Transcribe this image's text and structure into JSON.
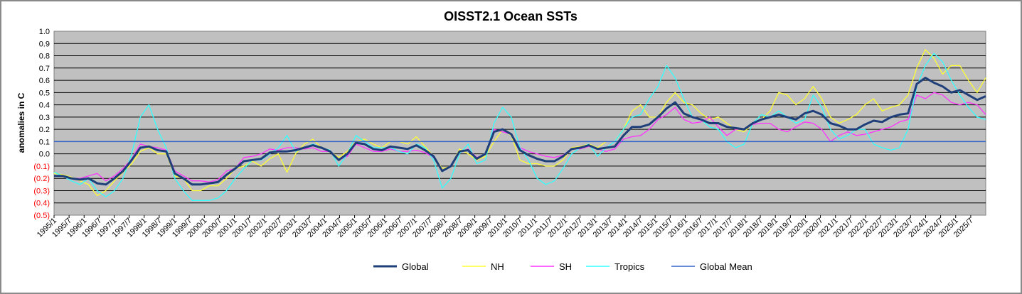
{
  "chart_data": {
    "type": "line",
    "title": "OISST2.1 Ocean SSTs",
    "ylabel": "anomalies in C",
    "xlabel": "",
    "ylim": [
      -0.5,
      1.0
    ],
    "y_ticks": [
      "1.0",
      "0.9",
      "0.8",
      "0.7",
      "0.6",
      "0.5",
      "0.4",
      "0.3",
      "0.2",
      "0.1",
      "0.0",
      "(0.1)",
      "(0.2)",
      "(0.3)",
      "(0.4)",
      "(0.5)"
    ],
    "x_ticks": [
      "1995/1",
      "1995/7",
      "1996/1",
      "1996/7",
      "1997/1",
      "1997/7",
      "1998/1",
      "1998/7",
      "1999/1",
      "1999/7",
      "2000/1",
      "2000/7",
      "2001/1",
      "2001/7",
      "2002/1",
      "2002/7",
      "2003/1",
      "2003/7",
      "2004/1",
      "2004/7",
      "2005/1",
      "2005/7",
      "2006/1",
      "2006/7",
      "2007/1",
      "2007/7",
      "2008/1",
      "2008/7",
      "2009/1",
      "2009/7",
      "2010/1",
      "2010/7",
      "2011/1",
      "2011/7",
      "2012/1",
      "2012/7",
      "2013/1",
      "2013/7",
      "2014/1",
      "2014/7",
      "2015/1",
      "2015/7",
      "2016/1",
      "2016/7",
      "2017/1",
      "2017/7",
      "2018/1",
      "2018/7",
      "2019/1",
      "2019/7",
      "2020/1",
      "2020/7",
      "2021/1",
      "2021/7",
      "2022/1",
      "2022/7",
      "2023/1",
      "2023/7",
      "2024/1",
      "2024/7",
      "2025/1",
      "2025/7"
    ],
    "grid": true,
    "legend_position": "bottom",
    "series": [
      {
        "name": "Global",
        "color": "#1f3f7a",
        "values": [
          -0.18,
          -0.18,
          -0.2,
          -0.21,
          -0.2,
          -0.24,
          -0.25,
          -0.2,
          -0.14,
          -0.05,
          0.05,
          0.06,
          0.03,
          0.02,
          -0.16,
          -0.2,
          -0.25,
          -0.25,
          -0.24,
          -0.23,
          -0.17,
          -0.12,
          -0.06,
          -0.05,
          -0.04,
          0.01,
          0.02,
          0.02,
          0.03,
          0.05,
          0.07,
          0.05,
          0.02,
          -0.05,
          0.0,
          0.09,
          0.08,
          0.04,
          0.03,
          0.06,
          0.05,
          0.04,
          0.07,
          0.03,
          -0.02,
          -0.14,
          -0.1,
          0.02,
          0.03,
          -0.04,
          0.0,
          0.18,
          0.2,
          0.16,
          0.03,
          -0.01,
          -0.04,
          -0.06,
          -0.06,
          -0.02,
          0.04,
          0.05,
          0.07,
          0.04,
          0.05,
          0.06,
          0.15,
          0.22,
          0.22,
          0.24,
          0.3,
          0.37,
          0.42,
          0.33,
          0.3,
          0.28,
          0.25,
          0.25,
          0.22,
          0.21,
          0.2,
          0.25,
          0.28,
          0.3,
          0.32,
          0.3,
          0.28,
          0.33,
          0.35,
          0.32,
          0.25,
          0.23,
          0.2,
          0.2,
          0.24,
          0.27,
          0.26,
          0.3,
          0.32,
          0.33,
          0.57,
          0.62,
          0.58,
          0.55,
          0.5,
          0.52,
          0.48,
          0.44,
          0.47
        ]
      },
      {
        "name": "NH",
        "color": "#ffff33",
        "values": [
          -0.16,
          -0.17,
          -0.19,
          -0.22,
          -0.25,
          -0.34,
          -0.3,
          -0.22,
          -0.15,
          -0.08,
          0.02,
          0.05,
          0.0,
          0.0,
          -0.18,
          -0.2,
          -0.3,
          -0.3,
          -0.26,
          -0.26,
          -0.2,
          -0.12,
          -0.1,
          -0.06,
          -0.1,
          -0.04,
          0.0,
          -0.15,
          0.0,
          0.08,
          0.12,
          0.05,
          0.02,
          -0.03,
          0.02,
          0.1,
          0.12,
          0.08,
          0.05,
          0.1,
          0.1,
          0.08,
          0.14,
          0.06,
          -0.02,
          -0.12,
          -0.1,
          0.04,
          0.0,
          -0.05,
          -0.02,
          0.1,
          0.2,
          0.15,
          -0.05,
          -0.08,
          -0.08,
          -0.1,
          -0.1,
          -0.05,
          0.05,
          0.06,
          0.08,
          0.05,
          0.1,
          0.1,
          0.2,
          0.35,
          0.4,
          0.3,
          0.3,
          0.42,
          0.5,
          0.42,
          0.4,
          0.33,
          0.28,
          0.3,
          0.25,
          0.2,
          0.18,
          0.25,
          0.28,
          0.35,
          0.5,
          0.48,
          0.4,
          0.45,
          0.55,
          0.45,
          0.3,
          0.25,
          0.28,
          0.32,
          0.4,
          0.45,
          0.35,
          0.38,
          0.4,
          0.48,
          0.7,
          0.85,
          0.78,
          0.65,
          0.72,
          0.72,
          0.6,
          0.5,
          0.62
        ]
      },
      {
        "name": "SH",
        "color": "#ff33ff",
        "values": [
          -0.18,
          -0.18,
          -0.2,
          -0.2,
          -0.18,
          -0.16,
          -0.22,
          -0.18,
          -0.12,
          -0.04,
          0.08,
          0.06,
          0.05,
          0.03,
          -0.14,
          -0.18,
          -0.22,
          -0.22,
          -0.23,
          -0.21,
          -0.14,
          -0.12,
          -0.03,
          -0.02,
          0.0,
          0.04,
          0.03,
          0.05,
          0.05,
          0.04,
          0.05,
          0.02,
          0.02,
          -0.05,
          -0.02,
          0.08,
          0.05,
          0.02,
          0.02,
          0.04,
          0.02,
          0.02,
          0.03,
          0.01,
          -0.03,
          -0.14,
          -0.1,
          0.01,
          0.04,
          -0.03,
          0.0,
          0.2,
          0.18,
          0.16,
          0.05,
          0.02,
          0.0,
          -0.02,
          -0.03,
          -0.01,
          0.04,
          0.04,
          0.06,
          0.04,
          0.02,
          0.04,
          0.12,
          0.14,
          0.15,
          0.2,
          0.28,
          0.32,
          0.38,
          0.28,
          0.25,
          0.26,
          0.3,
          0.22,
          0.15,
          0.2,
          0.2,
          0.24,
          0.25,
          0.25,
          0.2,
          0.18,
          0.22,
          0.26,
          0.25,
          0.2,
          0.1,
          0.15,
          0.18,
          0.15,
          0.16,
          0.18,
          0.2,
          0.22,
          0.26,
          0.28,
          0.48,
          0.45,
          0.5,
          0.48,
          0.42,
          0.4,
          0.42,
          0.4,
          0.32
        ]
      },
      {
        "name": "Tropics",
        "color": "#33ffff",
        "values": [
          -0.15,
          -0.18,
          -0.22,
          -0.25,
          -0.2,
          -0.3,
          -0.35,
          -0.3,
          -0.2,
          0.0,
          0.3,
          0.4,
          0.2,
          0.05,
          -0.2,
          -0.3,
          -0.38,
          -0.38,
          -0.38,
          -0.36,
          -0.3,
          -0.2,
          -0.12,
          -0.05,
          -0.05,
          0.0,
          0.05,
          0.15,
          0.02,
          0.05,
          0.08,
          0.05,
          0.03,
          -0.1,
          0.0,
          0.15,
          0.1,
          0.05,
          0.05,
          0.05,
          0.02,
          0.0,
          0.08,
          0.05,
          -0.05,
          -0.28,
          -0.2,
          0.0,
          0.08,
          -0.08,
          -0.05,
          0.25,
          0.38,
          0.3,
          0.05,
          -0.05,
          -0.2,
          -0.25,
          -0.22,
          -0.12,
          0.0,
          0.05,
          0.08,
          -0.02,
          0.05,
          0.1,
          0.2,
          0.3,
          0.32,
          0.45,
          0.55,
          0.72,
          0.62,
          0.45,
          0.3,
          0.28,
          0.22,
          0.2,
          0.1,
          0.05,
          0.08,
          0.25,
          0.32,
          0.3,
          0.35,
          0.3,
          0.25,
          0.28,
          0.48,
          0.38,
          0.2,
          0.12,
          0.15,
          0.2,
          0.2,
          0.08,
          0.05,
          0.03,
          0.05,
          0.2,
          0.55,
          0.72,
          0.82,
          0.75,
          0.6,
          0.48,
          0.38,
          0.3,
          0.28
        ]
      },
      {
        "name": "Global Mean",
        "color": "#3366cc",
        "values": [
          0.1,
          0.1
        ]
      }
    ]
  }
}
